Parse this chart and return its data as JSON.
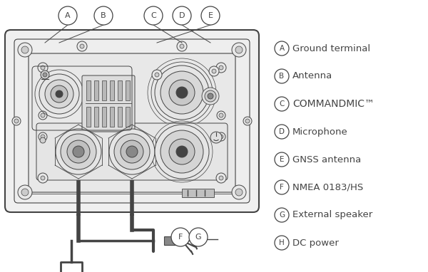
{
  "bg_color": "#ffffff",
  "line_color": "#444444",
  "legend_items": [
    {
      "letter": "A",
      "text": "Ground terminal"
    },
    {
      "letter": "B",
      "text": "Antenna"
    },
    {
      "letter": "C",
      "text": "COMMANDMIC™"
    },
    {
      "letter": "D",
      "text": "Microphone"
    },
    {
      "letter": "E",
      "text": "GNSS antenna"
    },
    {
      "letter": "F",
      "text": "NMEA 0183/HS"
    },
    {
      "letter": "G",
      "text": "External speaker"
    },
    {
      "letter": "H",
      "text": "DC power"
    }
  ],
  "figsize": [
    6.0,
    3.82
  ],
  "dpi": 100
}
